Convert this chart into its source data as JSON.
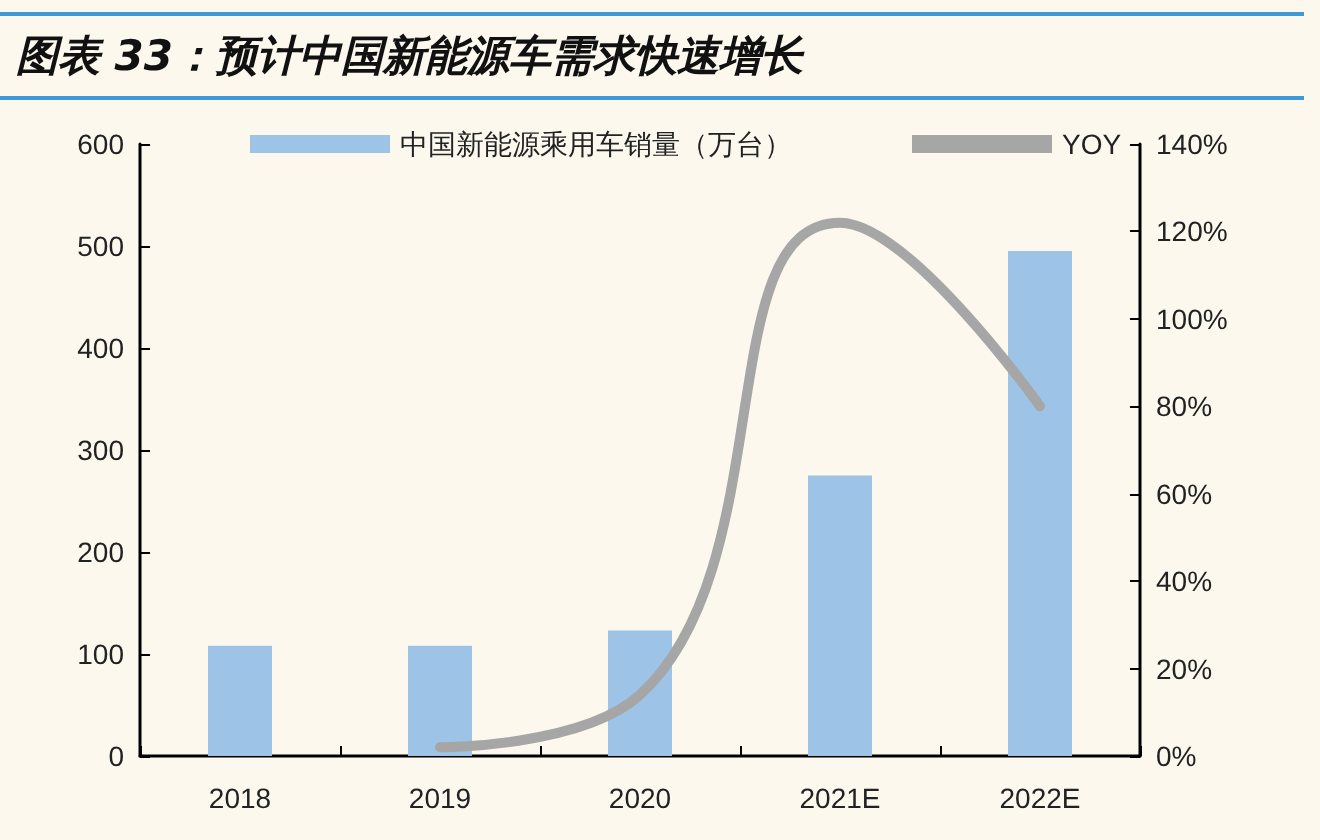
{
  "chart_data": {
    "type": "bar",
    "title": "图表 33：预计中国新能源车需求快速增长",
    "categories": [
      "2018",
      "2019",
      "2020",
      "2021E",
      "2022E"
    ],
    "series": [
      {
        "name": "中国新能源乘用车销量（万台）",
        "color": "#9dc3e6",
        "values": [
          108,
          108,
          123,
          275,
          495
        ]
      },
      {
        "name": "YOY",
        "type": "line",
        "axis": "y2",
        "color": "#a6a6a6",
        "values": [
          null,
          2,
          14,
          122,
          80
        ]
      }
    ],
    "ylim": [
      0,
      600
    ],
    "yticks": [
      0,
      100,
      200,
      300,
      400,
      500,
      600
    ],
    "y2lim": [
      0,
      140
    ],
    "y2ticks": [
      {
        "value": 0,
        "label": "0%"
      },
      {
        "value": 20,
        "label": "20%"
      },
      {
        "value": 40,
        "label": "40%"
      },
      {
        "value": 60,
        "label": "60%"
      },
      {
        "value": 80,
        "label": "80%"
      },
      {
        "value": 100,
        "label": "100%"
      },
      {
        "value": 120,
        "label": "120%"
      },
      {
        "value": 140,
        "label": "140%"
      }
    ],
    "legend": "top",
    "grid": false,
    "marker": "none",
    "line_style": "solid"
  }
}
